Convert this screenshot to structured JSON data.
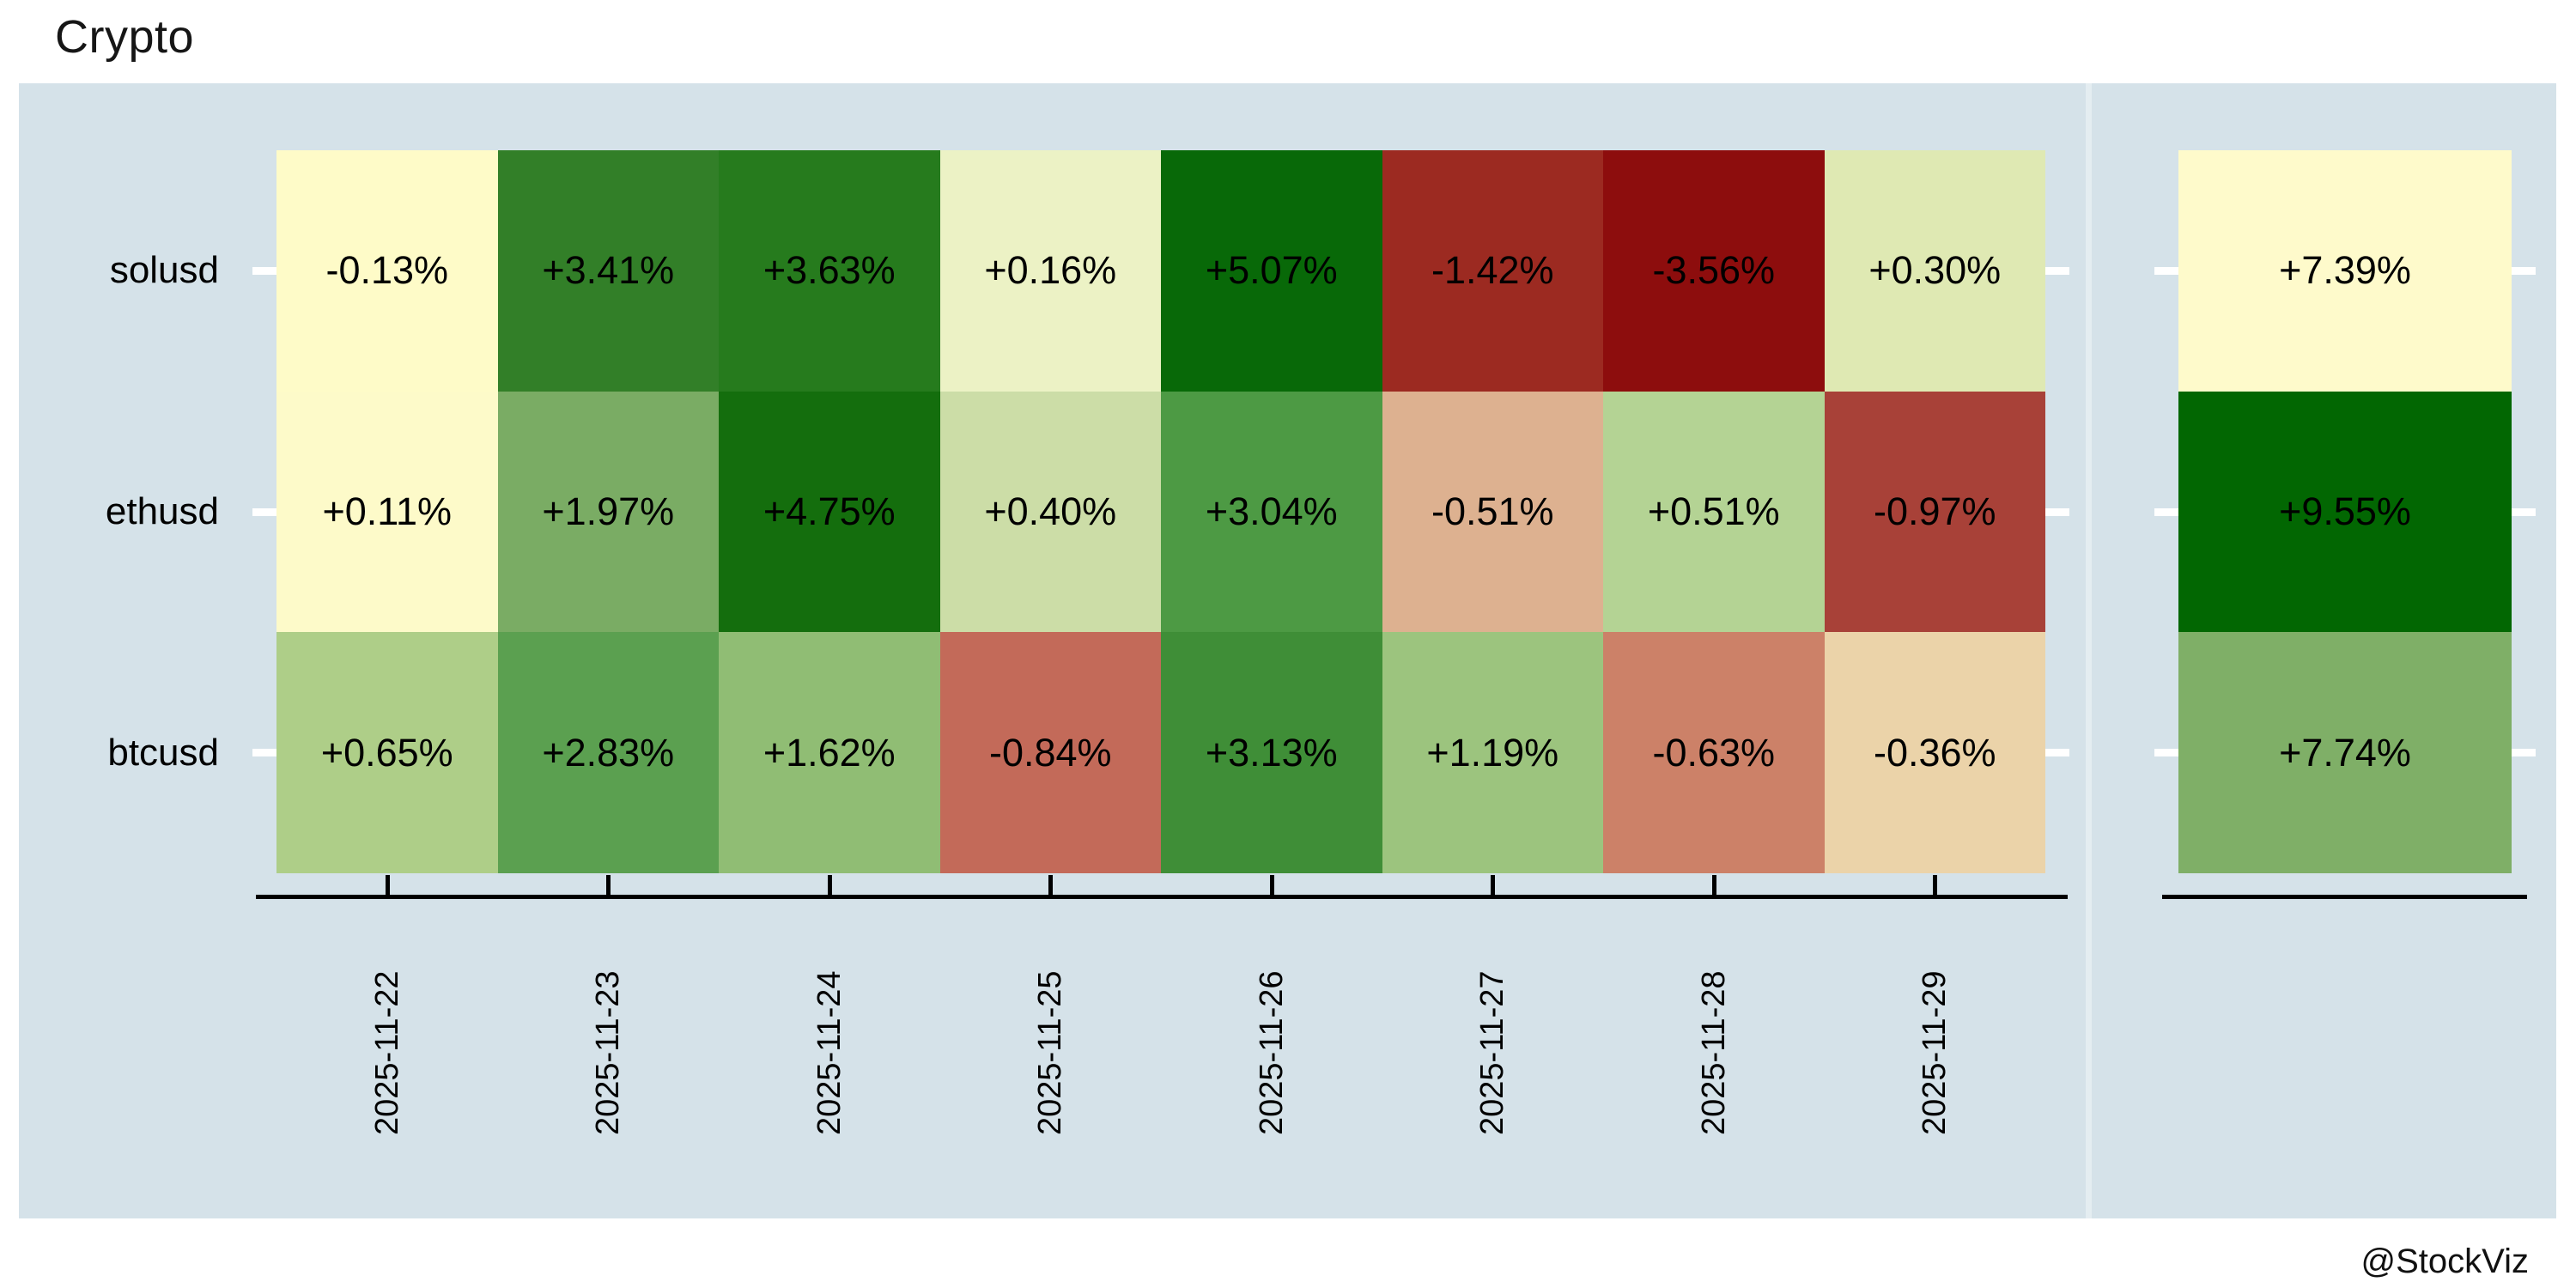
{
  "title": "Crypto",
  "watermark": "@StockViz",
  "colors": {
    "figure_background": "#ffffff",
    "panel_background": "#D5E2E9",
    "facet_divider": "#E4EDF1",
    "axis": "#000000",
    "tick_white": "#ffffff",
    "text": "#000000"
  },
  "chart_data": {
    "type": "heatmap",
    "title": "Crypto",
    "xlabel": "",
    "ylabel": "",
    "values_unit": "percent daily return",
    "colormap": "red-yellow-green",
    "legend_position": "none",
    "grid": false,
    "x_categories": [
      "2025-11-22",
      "2025-11-23",
      "2025-11-24",
      "2025-11-25",
      "2025-11-26",
      "2025-11-27",
      "2025-11-28",
      "2025-11-29"
    ],
    "y_categories": [
      "solusd",
      "ethusd",
      "btcusd"
    ],
    "series": [
      {
        "name": "solusd",
        "values": [
          -0.13,
          3.41,
          3.63,
          0.16,
          5.07,
          -1.42,
          -3.56,
          0.3
        ],
        "labels": [
          "-0.13%",
          "+3.41%",
          "+3.63%",
          "+0.16%",
          "+5.07%",
          "-1.42%",
          "-3.56%",
          "+0.30%"
        ],
        "cell_colors": [
          "#FEFBC8",
          "#327F28",
          "#267B1D",
          "#ECF2C5",
          "#086908",
          "#9C2A21",
          "#8D0D0D",
          "#DFE9B3"
        ],
        "total": 7.39,
        "total_label": "+7.39%",
        "total_color": "#FEFACB"
      },
      {
        "name": "ethusd",
        "values": [
          0.11,
          1.97,
          4.75,
          0.4,
          3.04,
          -0.51,
          0.51,
          -0.97
        ],
        "labels": [
          "+0.11%",
          "+1.97%",
          "+4.75%",
          "+0.40%",
          "+3.04%",
          "-0.51%",
          "+0.51%",
          "-0.97%"
        ],
        "cell_colors": [
          "#FDFAC9",
          "#7AAC64",
          "#146E0D",
          "#CCDDA7",
          "#4D9A44",
          "#DDB190",
          "#B4D394",
          "#A84138"
        ],
        "total": 9.55,
        "total_label": "+9.55%",
        "total_color": "#026702"
      },
      {
        "name": "btcusd",
        "values": [
          0.65,
          2.83,
          1.62,
          -0.84,
          3.13,
          1.19,
          -0.63,
          -0.36
        ],
        "labels": [
          "+0.65%",
          "+2.83%",
          "+1.62%",
          "-0.84%",
          "+3.13%",
          "+1.19%",
          "-0.63%",
          "-0.36%"
        ],
        "cell_colors": [
          "#AECE88",
          "#5BA050",
          "#90BD74",
          "#C36A59",
          "#3F8E37",
          "#9CC47E",
          "#CC8168",
          "#EBD3A9"
        ],
        "total": 7.74,
        "total_label": "+7.74%",
        "total_color": "#7FAF67"
      }
    ]
  }
}
